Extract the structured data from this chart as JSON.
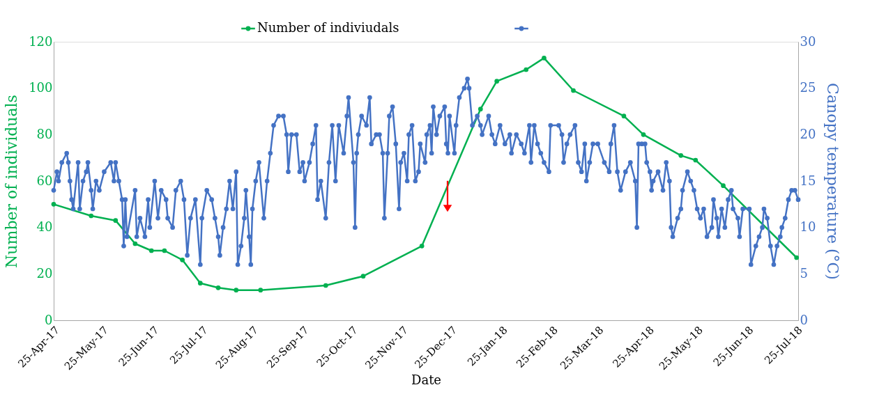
{
  "chart_data": {
    "type": "line",
    "xlabel": "Date",
    "ylabel": "Number of individuals",
    "y2label": "Canopy temperature (°C)",
    "xlim": [
      "2017-04-25",
      "2018-07-26"
    ],
    "xticks": [
      {
        "value": "2017-04-25",
        "label": "25-Apr-17"
      },
      {
        "value": "2017-05-25",
        "label": "25-May-17"
      },
      {
        "value": "2017-06-25",
        "label": "25-Jun-17"
      },
      {
        "value": "2017-07-25",
        "label": "25-Jul-17"
      },
      {
        "value": "2017-08-25",
        "label": "25-Aug-17"
      },
      {
        "value": "2017-09-25",
        "label": "25-Sep-17"
      },
      {
        "value": "2017-10-25",
        "label": "25-Oct-17"
      },
      {
        "value": "2017-11-25",
        "label": "25-Nov-17"
      },
      {
        "value": "2017-12-25",
        "label": "25-Dec-17"
      },
      {
        "value": "2018-01-25",
        "label": "25-Jan-18"
      },
      {
        "value": "2018-02-25",
        "label": "25-Feb-18"
      },
      {
        "value": "2018-03-25",
        "label": "25-Mar-18"
      },
      {
        "value": "2018-04-25",
        "label": "25-Apr-18"
      },
      {
        "value": "2018-05-25",
        "label": "25-May-18"
      },
      {
        "value": "2018-06-25",
        "label": "25-Jun-18"
      },
      {
        "value": "2018-07-25",
        "label": "25-Jul-18"
      }
    ],
    "ylim": [
      0,
      120
    ],
    "yticks": [
      0,
      20,
      40,
      60,
      80,
      100,
      120
    ],
    "y2lim": [
      0,
      30
    ],
    "y2ticks": [
      0,
      5,
      10,
      15,
      20,
      25,
      30
    ],
    "grid": false,
    "legend": "top",
    "marker": "circle",
    "line_style": "solid",
    "series": [
      {
        "name": "Number of indiviudals",
        "color": "#00b050",
        "x": [
          "2017-04-25",
          "2017-05-18",
          "2017-06-02",
          "2017-06-14",
          "2017-06-24",
          "2017-07-02",
          "2017-07-13",
          "2017-07-24",
          "2017-08-04",
          "2017-08-15",
          "2017-08-30",
          "2017-10-09",
          "2017-11-01",
          "2017-12-07",
          "2018-01-12",
          "2018-01-22",
          "2018-02-09",
          "2018-02-20",
          "2018-03-10",
          "2018-04-10",
          "2018-04-22",
          "2018-05-15",
          "2018-05-24",
          "2018-06-10",
          "2018-07-25"
        ],
        "values": [
          50,
          45,
          43,
          33,
          30,
          30,
          26,
          16,
          14,
          13,
          13,
          15,
          19,
          32,
          91,
          103,
          108,
          113,
          99,
          88,
          80,
          71,
          69,
          58,
          27
        ]
      },
      {
        "color": "#4472c4",
        "axis": "y2",
        "x": [
          "2017-04-25",
          "2017-04-27",
          "2017-04-28",
          "2017-04-30",
          "2017-05-03",
          "2017-05-04",
          "2017-05-05",
          "2017-05-06",
          "2017-05-07",
          "2017-05-10",
          "2017-05-11",
          "2017-05-13",
          "2017-05-15",
          "2017-05-16",
          "2017-05-18",
          "2017-05-19",
          "2017-05-21",
          "2017-05-23",
          "2017-05-26",
          "2017-05-30",
          "2017-06-01",
          "2017-06-02",
          "2017-06-04",
          "2017-06-06",
          "2017-06-07",
          "2017-06-08",
          "2017-06-09",
          "2017-06-14",
          "2017-06-15",
          "2017-06-17",
          "2017-06-20",
          "2017-06-22",
          "2017-06-23",
          "2017-06-26",
          "2017-06-28",
          "2017-06-30",
          "2017-07-03",
          "2017-07-04",
          "2017-07-07",
          "2017-07-09",
          "2017-07-12",
          "2017-07-14",
          "2017-07-16",
          "2017-07-18",
          "2017-07-21",
          "2017-07-24",
          "2017-07-25",
          "2017-07-28",
          "2017-07-31",
          "2017-08-02",
          "2017-08-04",
          "2017-08-05",
          "2017-08-07",
          "2017-08-09",
          "2017-08-11",
          "2017-08-13",
          "2017-08-15",
          "2017-08-16",
          "2017-08-18",
          "2017-08-20",
          "2017-08-21",
          "2017-08-23",
          "2017-08-24",
          "2017-08-25",
          "2017-08-27",
          "2017-08-29",
          "2017-09-01",
          "2017-09-03",
          "2017-09-05",
          "2017-09-07",
          "2017-09-10",
          "2017-09-13",
          "2017-09-15",
          "2017-09-16",
          "2017-09-18",
          "2017-09-21",
          "2017-09-23",
          "2017-09-25",
          "2017-09-26",
          "2017-09-29",
          "2017-10-01",
          "2017-10-03",
          "2017-10-04",
          "2017-10-06",
          "2017-10-09",
          "2017-10-11",
          "2017-10-13",
          "2017-10-15",
          "2017-10-17",
          "2017-10-20",
          "2017-10-22",
          "2017-10-23",
          "2017-10-26",
          "2017-10-27",
          "2017-10-28",
          "2017-10-29",
          "2017-10-31",
          "2017-11-03",
          "2017-11-05",
          "2017-11-06",
          "2017-11-09",
          "2017-11-11",
          "2017-11-13",
          "2017-11-14",
          "2017-11-16",
          "2017-11-17",
          "2017-11-19",
          "2017-11-21",
          "2017-11-23",
          "2017-11-24",
          "2017-11-26",
          "2017-11-28",
          "2017-11-29",
          "2017-12-01",
          "2017-12-03",
          "2017-12-05",
          "2017-12-06",
          "2017-12-09",
          "2017-12-10",
          "2017-12-12",
          "2017-12-13",
          "2017-12-14",
          "2017-12-16",
          "2017-12-18",
          "2017-12-21",
          "2017-12-22",
          "2017-12-23",
          "2017-12-24",
          "2017-12-27",
          "2017-12-28",
          "2017-12-30",
          "2018-01-02",
          "2018-01-04",
          "2018-01-05",
          "2018-01-07",
          "2018-01-10",
          "2018-01-12",
          "2018-01-13",
          "2018-01-17",
          "2018-01-19",
          "2018-01-21",
          "2018-01-24",
          "2018-01-27",
          "2018-01-30",
          "2018-01-31",
          "2018-02-03",
          "2018-02-06",
          "2018-02-08",
          "2018-02-11",
          "2018-02-12",
          "2018-02-14",
          "2018-02-16",
          "2018-02-18",
          "2018-02-20",
          "2018-02-23",
          "2018-02-24",
          "2018-03-01",
          "2018-03-03",
          "2018-03-04",
          "2018-03-06",
          "2018-03-08",
          "2018-03-11",
          "2018-03-13",
          "2018-03-15",
          "2018-03-17",
          "2018-03-18",
          "2018-03-20",
          "2018-03-22",
          "2018-03-25",
          "2018-03-29",
          "2018-04-01",
          "2018-04-02",
          "2018-04-04",
          "2018-04-06",
          "2018-04-08",
          "2018-04-11",
          "2018-04-14",
          "2018-04-17",
          "2018-04-18",
          "2018-04-19",
          "2018-04-21",
          "2018-04-23",
          "2018-04-24",
          "2018-04-26",
          "2018-04-27",
          "2018-04-28",
          "2018-05-01",
          "2018-05-04",
          "2018-05-06",
          "2018-05-08",
          "2018-05-09",
          "2018-05-10",
          "2018-05-13",
          "2018-05-15",
          "2018-05-16",
          "2018-05-19",
          "2018-05-21",
          "2018-05-23",
          "2018-05-25",
          "2018-05-27",
          "2018-05-29",
          "2018-05-31",
          "2018-06-03",
          "2018-06-04",
          "2018-06-06",
          "2018-06-07",
          "2018-06-09",
          "2018-06-11",
          "2018-06-13",
          "2018-06-15",
          "2018-06-16",
          "2018-06-19",
          "2018-06-20",
          "2018-06-22",
          "2018-06-26",
          "2018-06-27",
          "2018-06-30",
          "2018-07-02",
          "2018-07-04",
          "2018-07-05",
          "2018-07-07",
          "2018-07-09",
          "2018-07-11",
          "2018-07-13",
          "2018-07-15",
          "2018-07-16",
          "2018-07-18",
          "2018-07-20",
          "2018-07-22",
          "2018-07-24",
          "2018-07-26"
        ],
        "values": [
          14,
          16,
          15,
          17,
          18,
          17,
          15,
          13,
          12,
          17,
          12,
          15,
          16,
          17,
          14,
          12,
          15,
          14,
          16,
          17,
          15,
          17,
          15,
          13,
          8,
          13,
          9,
          14,
          9,
          11,
          9,
          13,
          10,
          15,
          11,
          14,
          13,
          11,
          10,
          14,
          15,
          13,
          7,
          11,
          13,
          6,
          11,
          14,
          13,
          11,
          9,
          7,
          10,
          12,
          15,
          12,
          16,
          6,
          8,
          11,
          14,
          9,
          6,
          12,
          15,
          17,
          11,
          15,
          18,
          21,
          22,
          22,
          20,
          16,
          20,
          20,
          16,
          17,
          15,
          17,
          19,
          21,
          13,
          15,
          11,
          17,
          21,
          15,
          21,
          18,
          22,
          24,
          17,
          10,
          18,
          20,
          22,
          21,
          24,
          19,
          20,
          20,
          18,
          11,
          18,
          22,
          23,
          19,
          12,
          17,
          18,
          15,
          20,
          21,
          15,
          16,
          19,
          17,
          20,
          21,
          18,
          23,
          20,
          22,
          23,
          19,
          18,
          22,
          18,
          21,
          24,
          25,
          26,
          25,
          21,
          22,
          21,
          20,
          22,
          20,
          19,
          21,
          19,
          20,
          18,
          20,
          19,
          18,
          21,
          17,
          21,
          19,
          18,
          17,
          16,
          21,
          21,
          20,
          17,
          19,
          20,
          21,
          17,
          16,
          19,
          15,
          17,
          19,
          19,
          17,
          16,
          19,
          21,
          16,
          14,
          16,
          17,
          15,
          10,
          19,
          19,
          19,
          17,
          16,
          14,
          15,
          16,
          14,
          17,
          15,
          10,
          9,
          11,
          12,
          14,
          16,
          15,
          14,
          12,
          11,
          12,
          9,
          10,
          13,
          11,
          9,
          12,
          10,
          13,
          14,
          12,
          11,
          9,
          12,
          12,
          6,
          8,
          9,
          10,
          12,
          11,
          8,
          6,
          8,
          9,
          10,
          11,
          13,
          14,
          14,
          13
        ]
      }
    ]
  }
}
